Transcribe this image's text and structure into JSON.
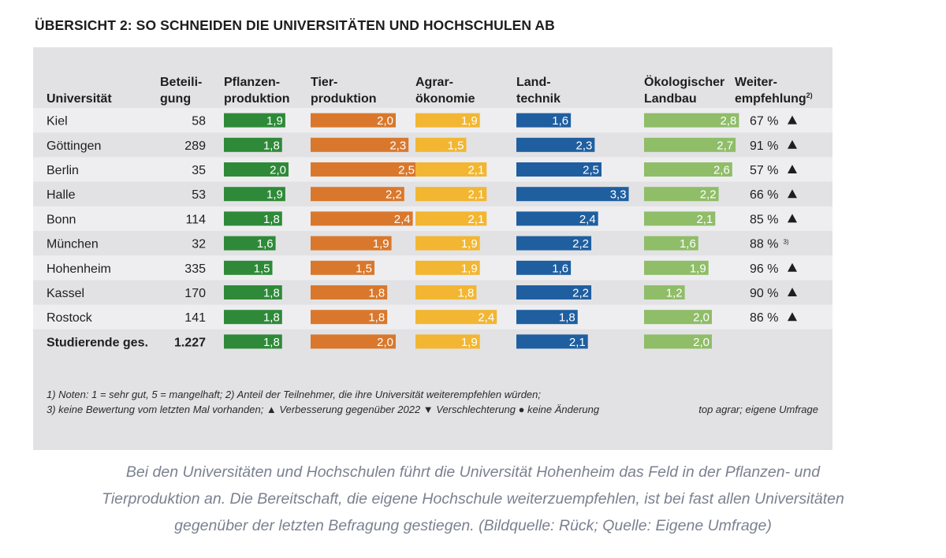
{
  "title": "ÜBERSICHT 2: SO SCHNEIDEN DIE UNIVERSITÄTEN UND HOCHSCHULEN AB",
  "chart_data": {
    "type": "table",
    "title": "ÜBERSICHT 2: SO SCHNEIDEN DIE UNIVERSITÄTEN UND HOCHSCHULEN AB",
    "columns": [
      {
        "id": "university",
        "lines": [
          "Universität"
        ]
      },
      {
        "id": "participation",
        "lines": [
          "Beteili-",
          "gung"
        ]
      },
      {
        "id": "pflanzen",
        "lines": [
          "Pflanzen-",
          "produktion"
        ]
      },
      {
        "id": "tier",
        "lines": [
          "Tier-",
          "produktion"
        ]
      },
      {
        "id": "agrar",
        "lines": [
          "Agrar-",
          "ökonomie"
        ]
      },
      {
        "id": "land",
        "lines": [
          "Land-",
          "technik"
        ]
      },
      {
        "id": "oeko",
        "lines": [
          "Ökologischer",
          "Landbau"
        ]
      },
      {
        "id": "recommend",
        "lines": [
          "Weiter-",
          "empfehlung"
        ],
        "superscript": "2)"
      }
    ],
    "series": [
      {
        "name": "Pflanzenproduktion",
        "color": "#2e8a38"
      },
      {
        "name": "Tierproduktion",
        "color": "#d9782c"
      },
      {
        "name": "Agrarökonomie",
        "color": "#f2b632"
      },
      {
        "name": "Landtechnik",
        "color": "#1f5fa0"
      },
      {
        "name": "Ökologischer Landbau",
        "color": "#8fbd68"
      }
    ],
    "rows": [
      {
        "name": "Kiel",
        "participation": "58",
        "values": [
          1.9,
          2.0,
          1.9,
          1.6,
          2.8
        ],
        "labels": [
          "1,9",
          "2,0",
          "1,9",
          "1,6",
          "2,8"
        ],
        "recommend": "67 %",
        "trend": "up"
      },
      {
        "name": "Göttingen",
        "participation": "289",
        "values": [
          1.8,
          2.3,
          1.5,
          2.3,
          2.7
        ],
        "labels": [
          "1,8",
          "2,3",
          "1,5",
          "2,3",
          "2,7"
        ],
        "recommend": "91 %",
        "trend": "up"
      },
      {
        "name": "Berlin",
        "participation": "35",
        "values": [
          2.0,
          2.5,
          2.1,
          2.5,
          2.6
        ],
        "labels": [
          "2,0",
          "2,5",
          "2,1",
          "2,5",
          "2,6"
        ],
        "recommend": "57 %",
        "trend": "up"
      },
      {
        "name": "Halle",
        "participation": "53",
        "values": [
          1.9,
          2.2,
          2.1,
          3.3,
          2.2
        ],
        "labels": [
          "1,9",
          "2,2",
          "2,1",
          "3,3",
          "2,2"
        ],
        "recommend": "66 %",
        "trend": "up"
      },
      {
        "name": "Bonn",
        "participation": "114",
        "values": [
          1.8,
          2.4,
          2.1,
          2.4,
          2.1
        ],
        "labels": [
          "1,8",
          "2,4",
          "2,1",
          "2,4",
          "2,1"
        ],
        "recommend": "85 %",
        "trend": "up"
      },
      {
        "name": "München",
        "participation": "32",
        "values": [
          1.6,
          1.9,
          1.9,
          2.2,
          1.6
        ],
        "labels": [
          "1,6",
          "1,9",
          "1,9",
          "2,2",
          "1,6"
        ],
        "recommend": "88 %",
        "trend": "none",
        "note": "3)"
      },
      {
        "name": "Hohenheim",
        "participation": "335",
        "values": [
          1.5,
          1.5,
          1.9,
          1.6,
          1.9
        ],
        "labels": [
          "1,5",
          "1,5",
          "1,9",
          "1,6",
          "1,9"
        ],
        "recommend": "96 %",
        "trend": "up"
      },
      {
        "name": "Kassel",
        "participation": "170",
        "values": [
          1.8,
          1.8,
          1.8,
          2.2,
          1.2
        ],
        "labels": [
          "1,8",
          "1,8",
          "1,8",
          "2,2",
          "1,2"
        ],
        "recommend": "90 %",
        "trend": "up"
      },
      {
        "name": "Rostock",
        "participation": "141",
        "values": [
          1.8,
          1.8,
          2.4,
          1.8,
          2.0
        ],
        "labels": [
          "1,8",
          "1,8",
          "2,4",
          "1,8",
          "2,0"
        ],
        "recommend": "86 %",
        "trend": "up"
      },
      {
        "name": "Studierende ges.",
        "participation": "1.227",
        "values": [
          1.8,
          2.0,
          1.9,
          2.1,
          2.0
        ],
        "labels": [
          "1,8",
          "2,0",
          "1,9",
          "2,1",
          "2,0"
        ],
        "recommend": "",
        "trend": "none",
        "bold": true
      }
    ],
    "footnotes": [
      "1) Noten: 1 = sehr gut, 5 = mangelhaft; 2) Anteil der Teilnehmer, die ihre Universität weiterempfehlen würden;",
      "3) keine Bewertung vom letzten Mal vorhanden; ▲ Verbesserung gegenüber 2022 ▼ Verschlechterung ● keine Änderung"
    ],
    "source": "top agrar; eigene Umfrage"
  },
  "caption": [
    "Bei den Universitäten und Hochschulen führt die Universität Hohenheim das Feld in der Pflanzen- und",
    "Tierproduktion an. Die Bereitschaft, die eigene Hochschule weiterzuempfehlen, ist bei fast allen Universitäten",
    "gegenüber der letzten Befragung gestiegen. (Bildquelle: Rück; Quelle: Eigene Umfrage)"
  ]
}
